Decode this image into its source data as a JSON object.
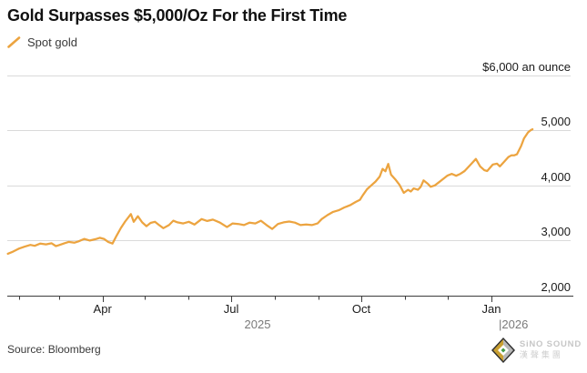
{
  "header": {
    "title": "Gold Surpasses $5,000/Oz For the First Time"
  },
  "legend": {
    "label": "Spot gold"
  },
  "footer": {
    "source": "Source: Bloomberg",
    "logo": {
      "brand": "SiNO SOUND",
      "brand_cn": "漢聲集團"
    }
  },
  "colors": {
    "line": "#ECA440",
    "gridline": "#DADADA",
    "axis": "#3C3C3C",
    "label_dark": "#1a1a1a",
    "label_gray": "#7a7a7a",
    "logo_gold": "#C9A032",
    "logo_silver": "#B8B8B8",
    "logo_dark": "#2E2E2E",
    "logo_green": "#3F9B43"
  },
  "chart_data": {
    "type": "line",
    "title": "Gold Surpasses $5,000/Oz For the First Time",
    "ylim": [
      2000,
      6000
    ],
    "grid": true,
    "legend_position": "top-left",
    "y_ticks": [
      {
        "value": 2000,
        "label": "2,000"
      },
      {
        "value": 3000,
        "label": "3,000"
      },
      {
        "value": 4000,
        "label": "4,000"
      },
      {
        "value": 5000,
        "label": "5,000"
      },
      {
        "value": 6000,
        "label": "$6,000 an ounce"
      }
    ],
    "x_ticks": [
      {
        "date": "2025-02-01",
        "label": ""
      },
      {
        "date": "2025-03-01",
        "label": ""
      },
      {
        "date": "2025-04-01",
        "label": "Apr"
      },
      {
        "date": "2025-05-01",
        "label": ""
      },
      {
        "date": "2025-06-01",
        "label": ""
      },
      {
        "date": "2025-07-01",
        "label": "Jul"
      },
      {
        "date": "2025-08-01",
        "label": ""
      },
      {
        "date": "2025-09-01",
        "label": ""
      },
      {
        "date": "2025-10-01",
        "label": "Oct"
      },
      {
        "date": "2025-11-01",
        "label": ""
      },
      {
        "date": "2025-12-01",
        "label": ""
      },
      {
        "date": "2026-01-01",
        "label": "Jan"
      }
    ],
    "year_labels": [
      {
        "label": "2025"
      },
      {
        "label": "|2026"
      }
    ],
    "series": [
      {
        "name": "Spot gold",
        "color": "#ECA440",
        "points": [
          [
            "2025-01-24",
            2760
          ],
          [
            "2025-01-27",
            2790
          ],
          [
            "2025-01-30",
            2830
          ],
          [
            "2025-02-01",
            2855
          ],
          [
            "2025-02-05",
            2890
          ],
          [
            "2025-02-09",
            2920
          ],
          [
            "2025-02-12",
            2905
          ],
          [
            "2025-02-16",
            2945
          ],
          [
            "2025-02-20",
            2930
          ],
          [
            "2025-02-24",
            2950
          ],
          [
            "2025-02-27",
            2900
          ],
          [
            "2025-03-01",
            2915
          ],
          [
            "2025-03-05",
            2950
          ],
          [
            "2025-03-08",
            2975
          ],
          [
            "2025-03-12",
            2960
          ],
          [
            "2025-03-15",
            2985
          ],
          [
            "2025-03-19",
            3030
          ],
          [
            "2025-03-23",
            3000
          ],
          [
            "2025-03-27",
            3025
          ],
          [
            "2025-03-30",
            3050
          ],
          [
            "2025-04-02",
            3030
          ],
          [
            "2025-04-05",
            2975
          ],
          [
            "2025-04-08",
            2945
          ],
          [
            "2025-04-11",
            3090
          ],
          [
            "2025-04-14",
            3230
          ],
          [
            "2025-04-17",
            3345
          ],
          [
            "2025-04-21",
            3480
          ],
          [
            "2025-04-23",
            3340
          ],
          [
            "2025-04-26",
            3440
          ],
          [
            "2025-04-29",
            3330
          ],
          [
            "2025-05-02",
            3260
          ],
          [
            "2025-05-05",
            3320
          ],
          [
            "2025-05-08",
            3340
          ],
          [
            "2025-05-11",
            3280
          ],
          [
            "2025-05-14",
            3225
          ],
          [
            "2025-05-18",
            3280
          ],
          [
            "2025-05-21",
            3360
          ],
          [
            "2025-05-24",
            3330
          ],
          [
            "2025-05-28",
            3310
          ],
          [
            "2025-06-01",
            3340
          ],
          [
            "2025-06-05",
            3290
          ],
          [
            "2025-06-10",
            3390
          ],
          [
            "2025-06-14",
            3355
          ],
          [
            "2025-06-18",
            3380
          ],
          [
            "2025-06-23",
            3325
          ],
          [
            "2025-06-28",
            3245
          ],
          [
            "2025-07-02",
            3310
          ],
          [
            "2025-07-06",
            3300
          ],
          [
            "2025-07-10",
            3280
          ],
          [
            "2025-07-14",
            3325
          ],
          [
            "2025-07-18",
            3310
          ],
          [
            "2025-07-22",
            3360
          ],
          [
            "2025-07-26",
            3280
          ],
          [
            "2025-07-30",
            3210
          ],
          [
            "2025-08-03",
            3300
          ],
          [
            "2025-08-07",
            3330
          ],
          [
            "2025-08-11",
            3345
          ],
          [
            "2025-08-15",
            3325
          ],
          [
            "2025-08-19",
            3280
          ],
          [
            "2025-08-23",
            3290
          ],
          [
            "2025-08-27",
            3280
          ],
          [
            "2025-08-31",
            3310
          ],
          [
            "2025-09-03",
            3390
          ],
          [
            "2025-09-07",
            3460
          ],
          [
            "2025-09-11",
            3520
          ],
          [
            "2025-09-15",
            3550
          ],
          [
            "2025-09-19",
            3600
          ],
          [
            "2025-09-23",
            3640
          ],
          [
            "2025-09-27",
            3700
          ],
          [
            "2025-09-30",
            3740
          ],
          [
            "2025-10-02",
            3820
          ],
          [
            "2025-10-05",
            3930
          ],
          [
            "2025-10-08",
            4000
          ],
          [
            "2025-10-11",
            4070
          ],
          [
            "2025-10-14",
            4160
          ],
          [
            "2025-10-16",
            4300
          ],
          [
            "2025-10-18",
            4255
          ],
          [
            "2025-10-20",
            4390
          ],
          [
            "2025-10-22",
            4195
          ],
          [
            "2025-10-25",
            4110
          ],
          [
            "2025-10-28",
            4010
          ],
          [
            "2025-10-31",
            3865
          ],
          [
            "2025-11-03",
            3920
          ],
          [
            "2025-11-05",
            3890
          ],
          [
            "2025-11-07",
            3945
          ],
          [
            "2025-11-10",
            3920
          ],
          [
            "2025-11-12",
            3975
          ],
          [
            "2025-11-14",
            4090
          ],
          [
            "2025-11-17",
            4030
          ],
          [
            "2025-11-19",
            3975
          ],
          [
            "2025-11-22",
            4000
          ],
          [
            "2025-11-25",
            4060
          ],
          [
            "2025-11-28",
            4120
          ],
          [
            "2025-12-01",
            4180
          ],
          [
            "2025-12-04",
            4210
          ],
          [
            "2025-12-07",
            4175
          ],
          [
            "2025-12-10",
            4210
          ],
          [
            "2025-12-13",
            4260
          ],
          [
            "2025-12-17",
            4370
          ],
          [
            "2025-12-21",
            4480
          ],
          [
            "2025-12-24",
            4345
          ],
          [
            "2025-12-27",
            4275
          ],
          [
            "2025-12-29",
            4260
          ],
          [
            "2026-01-02",
            4380
          ],
          [
            "2026-01-05",
            4395
          ],
          [
            "2026-01-07",
            4345
          ],
          [
            "2026-01-10",
            4430
          ],
          [
            "2026-01-13",
            4515
          ],
          [
            "2026-01-15",
            4545
          ],
          [
            "2026-01-17",
            4545
          ],
          [
            "2026-01-19",
            4565
          ],
          [
            "2026-01-22",
            4715
          ],
          [
            "2026-01-24",
            4850
          ],
          [
            "2026-01-27",
            4965
          ],
          [
            "2026-01-29",
            5005
          ],
          [
            "2026-01-30",
            5018
          ]
        ]
      }
    ]
  }
}
